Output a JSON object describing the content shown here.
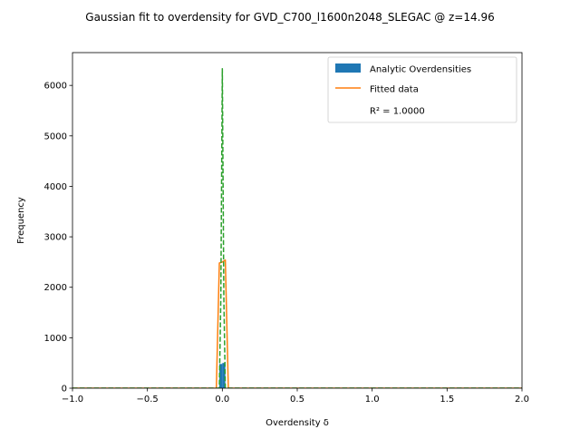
{
  "chart_data": {
    "type": "line",
    "title": "Gaussian fit to overdensity for GVD_C700_l1600n2048_SLEGAC @ z=14.96",
    "xlabel": "Overdensity δ",
    "ylabel": "Frequency",
    "xlim": [
      -1.0,
      2.0
    ],
    "ylim": [
      0,
      6650
    ],
    "xticks": [
      -1.0,
      -0.5,
      0.0,
      0.5,
      1.0,
      1.5,
      2.0
    ],
    "xtick_labels": [
      "−1.0",
      "−0.5",
      "0.0",
      "0.5",
      "1.0",
      "1.5",
      "2.0"
    ],
    "yticks": [
      0,
      1000,
      2000,
      3000,
      4000,
      5000,
      6000
    ],
    "ytick_labels": [
      "0",
      "1000",
      "2000",
      "3000",
      "4000",
      "5000",
      "6000"
    ],
    "grid": false,
    "legend": {
      "placement": "top-right",
      "entries": [
        {
          "label": "Analytic Overdensities",
          "kind": "patch",
          "color": "#1f77b4"
        },
        {
          "label": "Fitted data",
          "kind": "line",
          "color": "#ff7f0e"
        },
        {
          "label": "R² = 1.0000",
          "kind": "text"
        }
      ]
    },
    "histogram": {
      "name": "Analytic Overdensities",
      "color": "#1f77b4",
      "bins": [
        {
          "x0": -0.02,
          "x1": 0.0,
          "count": 480
        },
        {
          "x0": 0.0,
          "x1": 0.02,
          "count": 500
        }
      ]
    },
    "series": [
      {
        "name": "Fitted data",
        "color": "#ff7f0e",
        "style": "solid",
        "x": [
          -1.0,
          -0.04,
          -0.02,
          0.0,
          0.02,
          0.04,
          2.0
        ],
        "y": [
          0,
          0,
          2480,
          2500,
          2540,
          0,
          0
        ]
      },
      {
        "name": "",
        "color": "#2ca02c",
        "style": "dashed",
        "x": [
          -1.0,
          -0.02,
          -0.01,
          0.0,
          0.01,
          0.02,
          2.0
        ],
        "y": [
          0,
          0,
          1800,
          6330,
          1800,
          0,
          0
        ]
      }
    ]
  }
}
